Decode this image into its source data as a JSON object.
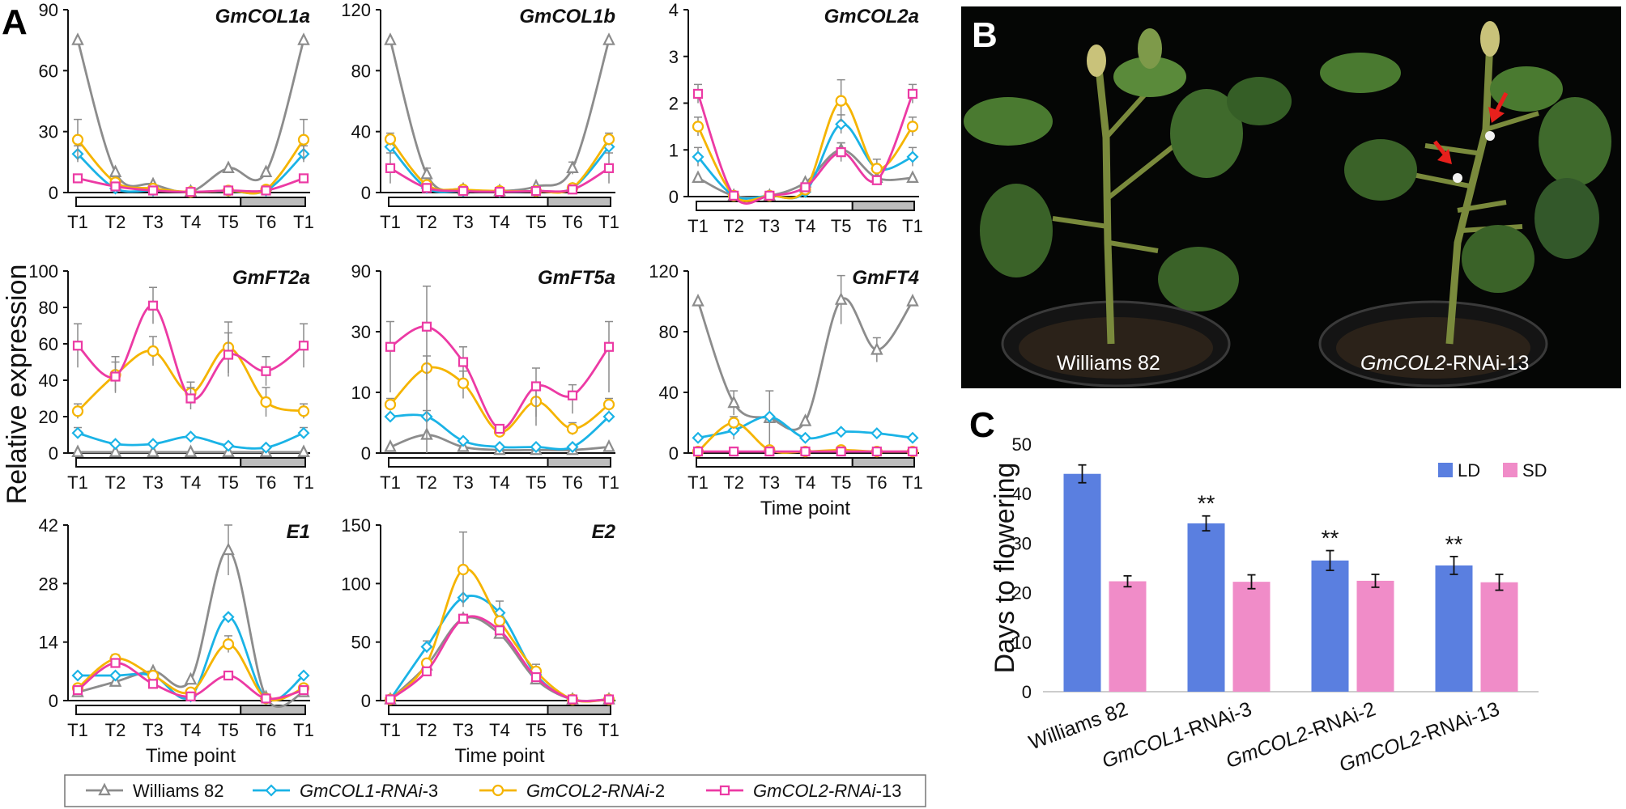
{
  "panel_letters": {
    "A": "A",
    "B": "B",
    "C": "C"
  },
  "y_axis_label": "Relative expression",
  "x_axis_label": "Time point",
  "time_points": [
    "T1",
    "T2",
    "T3",
    "T4",
    "T5",
    "T6",
    "T1"
  ],
  "legend": [
    {
      "pre": "",
      "it": "",
      "post": "Williams 82",
      "color": "#8c8c8c",
      "marker": "triangle"
    },
    {
      "pre": "",
      "it": "GmCOL1-RNAi",
      "post": "-3",
      "color": "#1ab3e6",
      "marker": "diamond"
    },
    {
      "pre": "",
      "it": "GmCOL2-RNAi",
      "post": "-2",
      "color": "#f5b400",
      "marker": "circle"
    },
    {
      "pre": "",
      "it": "GmCOL2-RNAi",
      "post": "-13",
      "color": "#ec3aa4",
      "marker": "square"
    }
  ],
  "photo": {
    "label_left": "Williams 82",
    "label_right_it": "GmCOL2",
    "label_right_rest": "-RNAi-13",
    "arrow_color": "#e8201c"
  },
  "chart_data": [
    {
      "type": "line",
      "title": "GmCOL1a",
      "ylim": [
        0,
        90
      ],
      "yticks": [
        "0",
        "30",
        "60",
        "90"
      ],
      "xlabel": "",
      "categories": [
        "T1",
        "T2",
        "T3",
        "T4",
        "T5",
        "T6",
        "T1"
      ],
      "series": [
        {
          "name": "Williams 82",
          "values": [
            75,
            10,
            4,
            0.5,
            12,
            10,
            75
          ],
          "err": [
            0,
            0,
            0,
            0,
            0,
            0,
            0
          ]
        },
        {
          "name": "GmCOL1-RNAi-3",
          "values": [
            19,
            2,
            1,
            0.3,
            0.8,
            1,
            19
          ],
          "err": [
            4,
            0,
            0,
            0,
            0,
            0,
            4
          ]
        },
        {
          "name": "GmCOL2-RNAi-2",
          "values": [
            26,
            5,
            2,
            0.3,
            1,
            1.5,
            26
          ],
          "err": [
            10,
            2,
            0,
            0,
            0,
            0,
            10
          ]
        },
        {
          "name": "GmCOL2-RNAi-13",
          "values": [
            7,
            3,
            1,
            0.3,
            1,
            1,
            7
          ],
          "err": [
            2,
            1,
            0,
            0,
            0,
            0,
            2
          ]
        }
      ]
    },
    {
      "type": "line",
      "title": "GmCOL1b",
      "ylim": [
        0,
        120
      ],
      "yticks": [
        "0",
        "40",
        "80",
        "120"
      ],
      "xlabel": "",
      "categories": [
        "T1",
        "T2",
        "T3",
        "T4",
        "T5",
        "T6",
        "T1"
      ],
      "series": [
        {
          "name": "Williams 82",
          "values": [
            100,
            12,
            2,
            1,
            4,
            16,
            100
          ],
          "err": [
            0,
            4,
            0,
            0,
            0,
            4,
            0
          ]
        },
        {
          "name": "GmCOL1-RNAi-3",
          "values": [
            30,
            3,
            1,
            0.5,
            1,
            3,
            30
          ],
          "err": [
            5,
            0,
            0,
            0,
            0,
            0,
            5
          ]
        },
        {
          "name": "GmCOL2-RNAi-2",
          "values": [
            35,
            5,
            2,
            1,
            1,
            3,
            35
          ],
          "err": [
            4,
            2,
            0,
            0,
            0,
            0,
            4
          ]
        },
        {
          "name": "GmCOL2-RNAi-13",
          "values": [
            16,
            3,
            1,
            0.5,
            1,
            2,
            16
          ],
          "err": [
            10,
            2,
            0,
            0,
            0,
            0,
            10
          ]
        }
      ]
    },
    {
      "type": "line",
      "title": "GmCOL2a",
      "ylim": [
        0,
        4
      ],
      "yticks": [
        "0",
        "1",
        "2",
        "3",
        "4"
      ],
      "xlabel": "",
      "categories": [
        "T1",
        "T2",
        "T3",
        "T4",
        "T5",
        "T6",
        "T1"
      ],
      "series": [
        {
          "name": "Williams 82",
          "values": [
            0.4,
            0.02,
            0.02,
            0.3,
            1.0,
            0.4,
            0.4
          ],
          "err": [
            0,
            0,
            0,
            0,
            0.15,
            0,
            0
          ]
        },
        {
          "name": "GmCOL1-RNAi-3",
          "values": [
            0.85,
            0.02,
            0.02,
            0.1,
            1.55,
            0.6,
            0.85
          ],
          "err": [
            0.2,
            0,
            0,
            0,
            0.2,
            0.2,
            0.2
          ]
        },
        {
          "name": "GmCOL2-RNAi-2",
          "values": [
            1.5,
            0.02,
            0.02,
            0.15,
            2.05,
            0.6,
            1.5
          ],
          "err": [
            0.2,
            0,
            0,
            0,
            0.45,
            0,
            0.2
          ]
        },
        {
          "name": "GmCOL2-RNAi-13",
          "values": [
            2.2,
            0.02,
            0.02,
            0.2,
            0.95,
            0.35,
            2.2
          ],
          "err": [
            0.2,
            0,
            0,
            0,
            0.2,
            0,
            0.2
          ]
        }
      ]
    },
    {
      "type": "line",
      "title": "GmFT2a",
      "ylim": [
        0,
        100
      ],
      "yticks": [
        "0",
        "20",
        "40",
        "60",
        "80",
        "100"
      ],
      "xlabel": "",
      "categories": [
        "T1",
        "T2",
        "T3",
        "T4",
        "T5",
        "T6",
        "T1"
      ],
      "series": [
        {
          "name": "Williams 82",
          "values": [
            0.5,
            0.5,
            0.5,
            0.5,
            0.5,
            0.5,
            0.5
          ],
          "err": [
            0,
            0,
            0,
            0,
            0,
            0,
            0
          ]
        },
        {
          "name": "GmCOL1-RNAi-3",
          "values": [
            11,
            5,
            5,
            9,
            4,
            3,
            11
          ],
          "err": [
            3,
            0,
            0,
            0,
            0,
            0,
            3
          ]
        },
        {
          "name": "GmCOL2-RNAi-2",
          "values": [
            23,
            43,
            56,
            33,
            58,
            28,
            23
          ],
          "err": [
            4,
            10,
            8,
            6,
            14,
            8,
            4
          ]
        },
        {
          "name": "GmCOL2-RNAi-13",
          "values": [
            59,
            42,
            81,
            30,
            54,
            45,
            59
          ],
          "err": [
            12,
            8,
            10,
            6,
            12,
            8,
            12
          ]
        }
      ]
    },
    {
      "type": "line",
      "title": "GmFT5a",
      "ylim": [
        0,
        90
      ],
      "yticks": [
        "0",
        "10",
        "30",
        "90"
      ],
      "xlabel": "",
      "categories": [
        "T1",
        "T2",
        "T3",
        "T4",
        "T5",
        "T6",
        "T1"
      ],
      "series": [
        {
          "name": "Williams 82",
          "values": [
            1,
            3,
            1,
            0.5,
            0.5,
            0.5,
            1
          ],
          "err": [
            0,
            0,
            0,
            0,
            0,
            0,
            0
          ]
        },
        {
          "name": "GmCOL1-RNAi-3",
          "values": [
            6,
            6,
            2,
            1,
            1,
            1,
            6
          ],
          "err": [
            0,
            1,
            0,
            0,
            0,
            0,
            0
          ]
        },
        {
          "name": "GmCOL2-RNAi-2",
          "values": [
            8,
            18,
            13,
            3.5,
            8.5,
            4,
            8
          ],
          "err": [
            1,
            4,
            4,
            0,
            4,
            1,
            1
          ]
        },
        {
          "name": "GmCOL2-RNAi-13",
          "values": [
            25,
            35,
            20,
            4,
            12,
            9.5,
            25
          ],
          "err": [
            15,
            40,
            5,
            0,
            6,
            3,
            15
          ]
        }
      ]
    },
    {
      "type": "line",
      "title": "GmFT4",
      "ylim": [
        0,
        120
      ],
      "yticks": [
        "0",
        "40",
        "80",
        "120"
      ],
      "xlabel": "Time point",
      "categories": [
        "T1",
        "T2",
        "T3",
        "T4",
        "T5",
        "T6",
        "T1"
      ],
      "series": [
        {
          "name": "Williams 82",
          "values": [
            100,
            33,
            23,
            21,
            101,
            68,
            100
          ],
          "err": [
            0,
            8,
            18,
            0,
            16,
            8,
            0
          ]
        },
        {
          "name": "GmCOL1-RNAi-3",
          "values": [
            10,
            15,
            24,
            10,
            14,
            13,
            10
          ],
          "err": [
            0,
            6,
            0,
            0,
            0,
            0,
            0
          ]
        },
        {
          "name": "GmCOL2-RNAi-2",
          "values": [
            1,
            20,
            2,
            1,
            2,
            1,
            1
          ],
          "err": [
            0,
            4,
            0,
            0,
            0,
            0,
            0
          ]
        },
        {
          "name": "GmCOL2-RNAi-13",
          "values": [
            1,
            1,
            1,
            1,
            1,
            1,
            1
          ],
          "err": [
            0,
            0,
            0,
            0,
            0,
            0,
            0
          ]
        }
      ]
    },
    {
      "type": "line",
      "title": "E1",
      "ylim": [
        0,
        42
      ],
      "yticks": [
        "0",
        "14",
        "28",
        "42"
      ],
      "xlabel": "Time point",
      "categories": [
        "T1",
        "T2",
        "T3",
        "T4",
        "T5",
        "T6",
        "T1"
      ],
      "series": [
        {
          "name": "Williams 82",
          "values": [
            2,
            4.5,
            7,
            5,
            36,
            0.8,
            2
          ],
          "err": [
            0,
            0,
            0,
            0,
            6,
            0,
            0
          ]
        },
        {
          "name": "GmCOL1-RNAi-3",
          "values": [
            6,
            6,
            6,
            1,
            20,
            0.5,
            6
          ],
          "err": [
            0,
            0,
            0,
            0,
            0,
            0,
            0
          ]
        },
        {
          "name": "GmCOL2-RNAi-2",
          "values": [
            3,
            10,
            6,
            2,
            13.5,
            0.5,
            3
          ],
          "err": [
            0,
            1,
            0,
            0,
            2,
            0,
            0
          ]
        },
        {
          "name": "GmCOL2-RNAi-13",
          "values": [
            2.5,
            9,
            4,
            1,
            6,
            0.5,
            2.5
          ],
          "err": [
            0,
            0,
            0,
            0,
            0,
            0,
            0
          ]
        }
      ]
    },
    {
      "type": "line",
      "title": "E2",
      "ylim": [
        0,
        150
      ],
      "yticks": [
        "0",
        "50",
        "100",
        "150"
      ],
      "xlabel": "Time point",
      "categories": [
        "T1",
        "T2",
        "T3",
        "T4",
        "T5",
        "T6",
        "T1"
      ],
      "series": [
        {
          "name": "Williams 82",
          "values": [
            1,
            30,
            70,
            57,
            18,
            1,
            1
          ],
          "err": [
            0,
            0,
            0,
            0,
            0,
            0,
            0
          ]
        },
        {
          "name": "GmCOL1-RNAi-3",
          "values": [
            1,
            46,
            88,
            75,
            22,
            1,
            1
          ],
          "err": [
            0,
            5,
            0,
            10,
            0,
            0,
            0
          ]
        },
        {
          "name": "GmCOL2-RNAi-2",
          "values": [
            1,
            32,
            112,
            68,
            25,
            1,
            1
          ],
          "err": [
            0,
            0,
            32,
            0,
            6,
            0,
            0
          ]
        },
        {
          "name": "GmCOL2-RNAi-13",
          "values": [
            1,
            25,
            70,
            60,
            20,
            1,
            1
          ],
          "err": [
            0,
            0,
            0,
            0,
            0,
            0,
            0
          ]
        }
      ]
    },
    {
      "type": "bar",
      "title": "",
      "xlabel": "",
      "ylabel": "Days to flowering",
      "ylim": [
        0,
        50
      ],
      "yticks": [
        "0",
        "10",
        "20",
        "30",
        "40",
        "50"
      ],
      "categories": [
        {
          "it": "",
          "rest": "Williams 82"
        },
        {
          "it": "GmCOL1",
          "rest": "-RNAi-3"
        },
        {
          "it": "GmCOL2",
          "rest": "-RNAi-2"
        },
        {
          "it": "GmCOL2",
          "rest": "-RNAi-13"
        }
      ],
      "series": [
        {
          "name": "LD",
          "color": "#5a7fe0",
          "values": [
            44,
            34,
            26.5,
            25.5
          ],
          "err": [
            1.8,
            1.5,
            2,
            1.8
          ]
        },
        {
          "name": "SD",
          "color": "#f08cc8",
          "values": [
            22.3,
            22.2,
            22.4,
            22.1
          ],
          "err": [
            1.1,
            1.4,
            1.3,
            1.6
          ]
        }
      ],
      "significance": [
        "",
        "**",
        "**",
        "**"
      ]
    }
  ]
}
